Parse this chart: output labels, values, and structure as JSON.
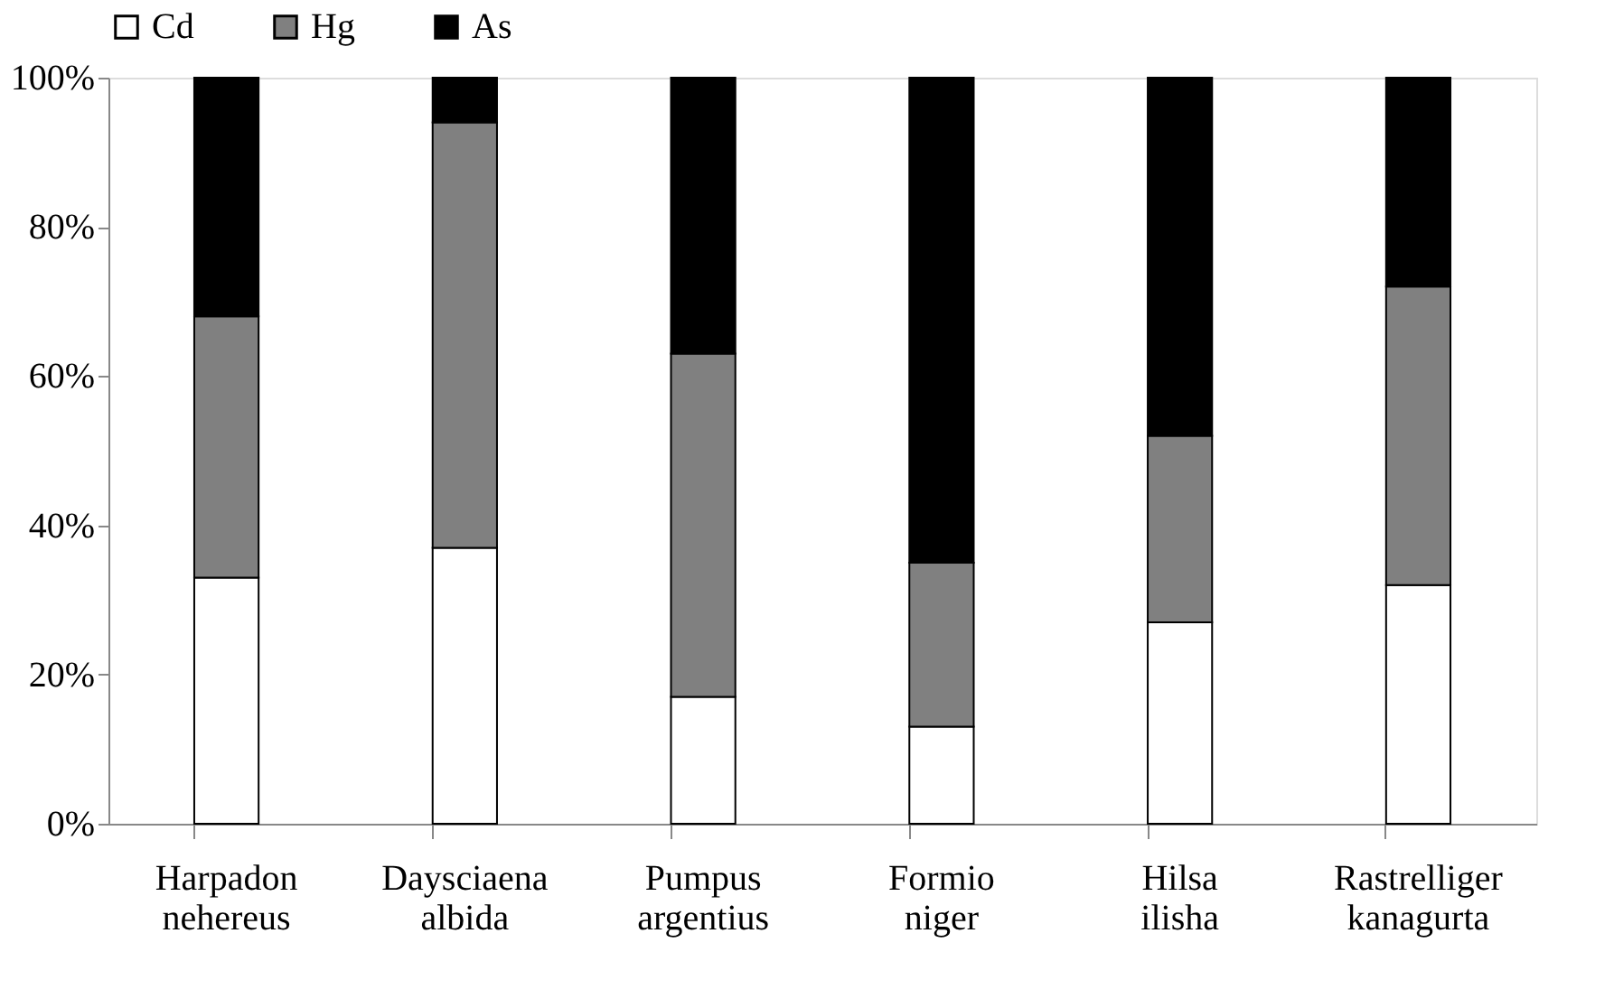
{
  "chart_data": {
    "type": "bar",
    "stacked": true,
    "legend": "top",
    "grid": false,
    "categories": [
      "Harpadon nehereus",
      "Daysciaena albida",
      "Pumpus argentius",
      "Formio niger",
      "Hilsa ilisha",
      "Rastrelliger kanagurta"
    ],
    "series": [
      {
        "name": "Cd",
        "color": "#ffffff",
        "values": [
          33,
          37,
          17,
          13,
          27,
          32
        ]
      },
      {
        "name": "Hg",
        "color": "#808080",
        "values": [
          35,
          57,
          46,
          22,
          25,
          40
        ]
      },
      {
        "name": "As",
        "color": "#000000",
        "values": [
          32,
          6,
          37,
          65,
          48,
          28
        ]
      }
    ],
    "ylim": [
      0,
      100
    ],
    "yticks": [
      {
        "value": 0,
        "label": "0%"
      },
      {
        "value": 20,
        "label": "20%"
      },
      {
        "value": 40,
        "label": "40%"
      },
      {
        "value": 60,
        "label": "60%"
      },
      {
        "value": 80,
        "label": "80%"
      },
      {
        "value": 100,
        "label": "100%"
      }
    ]
  }
}
